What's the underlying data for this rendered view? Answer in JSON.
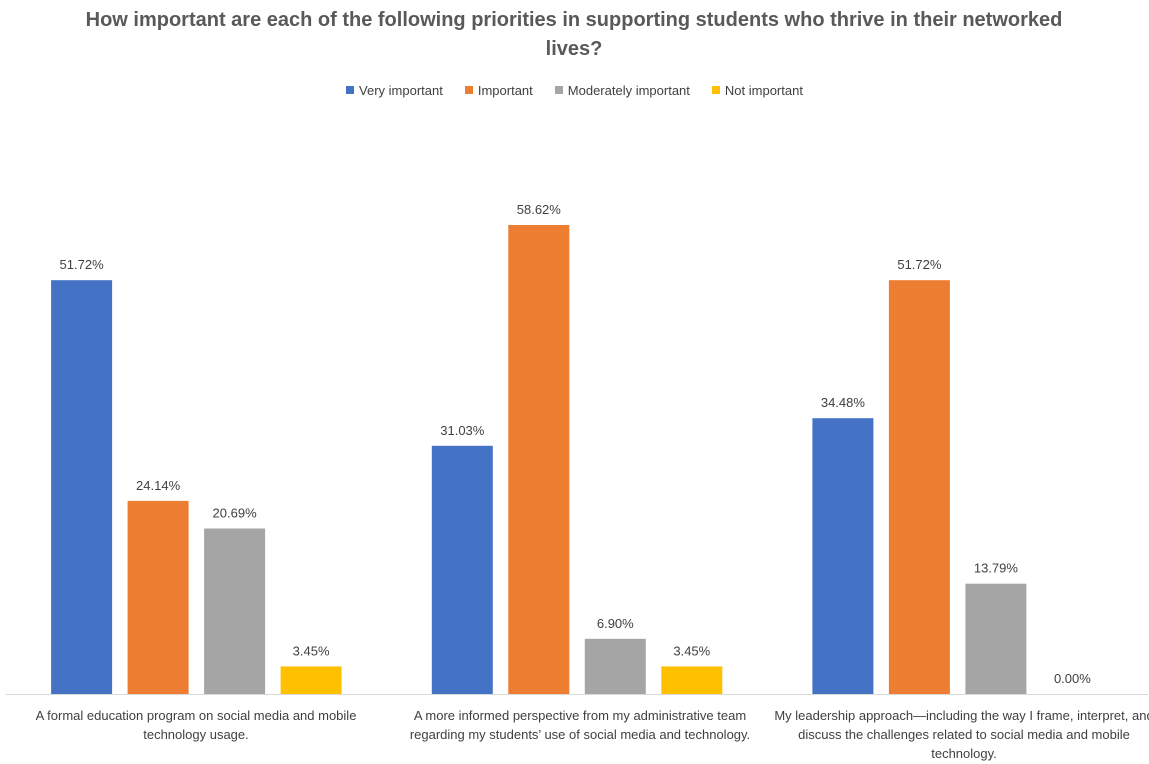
{
  "chart_data": {
    "type": "bar",
    "title": "How important are each of the following priorities in supporting students who thrive in their networked lives?",
    "categories": [
      "A formal education program on social media and mobile technology usage.",
      "A more informed perspective from my administrative team regarding my students’ use of social media and technology.",
      "My leadership approach—including the way I frame, interpret, and discuss the challenges related to social media and mobile technology."
    ],
    "series": [
      {
        "name": "Very important",
        "color": "#4472C4",
        "values": [
          51.72,
          31.03,
          34.48
        ],
        "labels": [
          "51.72%",
          "31.03%",
          "34.48%"
        ]
      },
      {
        "name": "Important",
        "color": "#ED7D31",
        "values": [
          24.14,
          58.62,
          51.72
        ],
        "labels": [
          "24.14%",
          "58.62%",
          "51.72%"
        ]
      },
      {
        "name": "Moderately important",
        "color": "#A5A5A5",
        "values": [
          20.69,
          6.9,
          13.79
        ],
        "labels": [
          "20.69%",
          "6.90%",
          "13.79%"
        ]
      },
      {
        "name": "Not important",
        "color": "#FFC000",
        "values": [
          3.45,
          3.45,
          0.0
        ],
        "labels": [
          "3.45%",
          "3.45%",
          "0.00%"
        ]
      }
    ],
    "ylim": [
      0,
      60
    ],
    "grid": false,
    "legend_position": "top"
  }
}
